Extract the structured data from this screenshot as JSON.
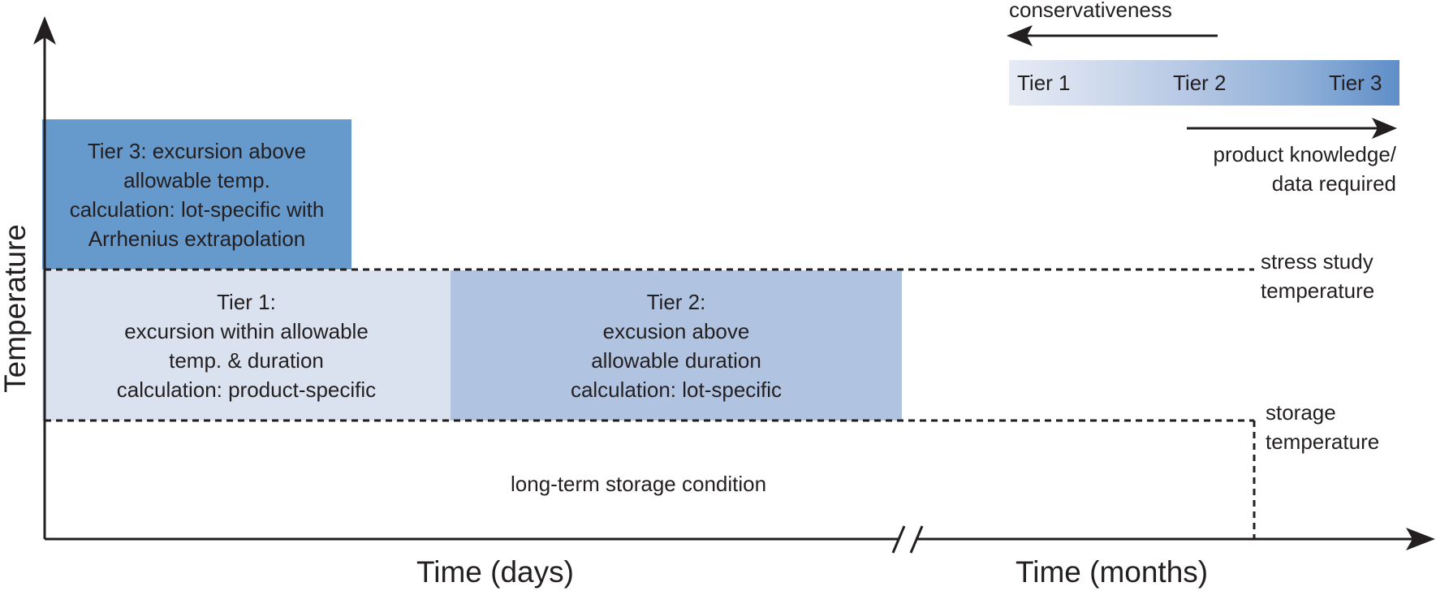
{
  "legend": {
    "conservativeness_label": "conservativeness",
    "tiers": [
      "Tier 1",
      "Tier 2",
      "Tier 3"
    ],
    "knowledge_label_line1": "product knowledge/",
    "knowledge_label_line2": "data required",
    "gradient_colors": [
      "#e6ebf5",
      "#b3c6e3",
      "#5f8ec8"
    ]
  },
  "boxes": {
    "tier3": {
      "lines": [
        "Tier 3: excursion above",
        "allowable temp.",
        "calculation: lot-specific with",
        "Arrhenius extrapolation"
      ],
      "color": "#6699cc"
    },
    "tier1": {
      "lines": [
        "Tier 1:",
        "excursion within allowable",
        "temp. & duration",
        "calculation: product-specific"
      ],
      "color": "#dae1ef"
    },
    "tier2": {
      "lines": [
        "Tier 2:",
        "excusion above",
        "allowable duration",
        "calculation: lot-specific"
      ],
      "color": "#b0c4e2"
    }
  },
  "levels": {
    "stress_line1": "stress study",
    "stress_line2": "temperature",
    "storage_line1": "storage",
    "storage_line2": "temperature"
  },
  "region_label": "long-term storage condition",
  "axes": {
    "y_title": "Temperature",
    "x_title_days": "Time (days)",
    "x_title_months": "Time (months)"
  }
}
